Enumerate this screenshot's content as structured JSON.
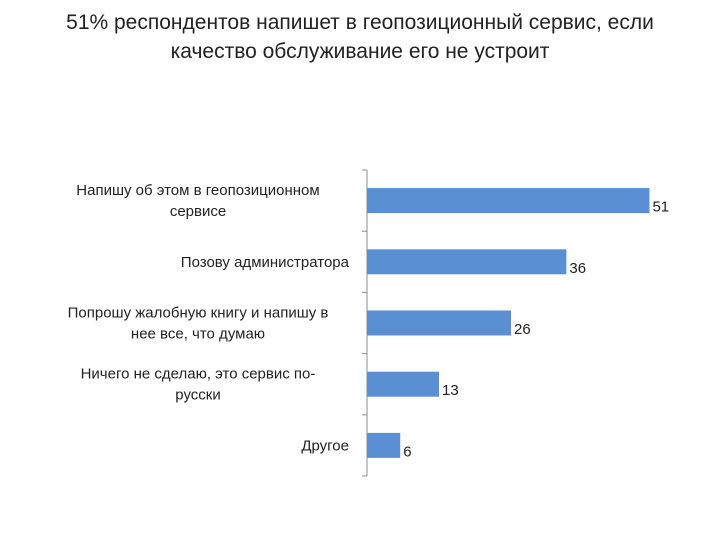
{
  "title_lines": [
    "51% респондентов напишет в геопозиционный сервис, если",
    "качество обслуживание его не устроит"
  ],
  "chart_data": {
    "type": "bar",
    "orientation": "horizontal",
    "title": "51% респондентов напишет в геопозиционный сервис, если качество обслуживание его не устроит",
    "categories": [
      [
        "Напишу об этом в геопозиционном",
        "сервисе"
      ],
      [
        "Позову администратора"
      ],
      [
        "Попрошу жалобную книгу и напишу в",
        "нее все, что думаю"
      ],
      [
        "Ничего не сделаю, это сервис по-",
        "русски"
      ],
      [
        "Другое"
      ]
    ],
    "values": [
      51,
      36,
      26,
      13,
      6
    ],
    "data_labels": true,
    "xlim": [
      0,
      52
    ],
    "grid": false,
    "bar_color": "#5b8fd4",
    "axis_color": "#8c8c8c"
  }
}
